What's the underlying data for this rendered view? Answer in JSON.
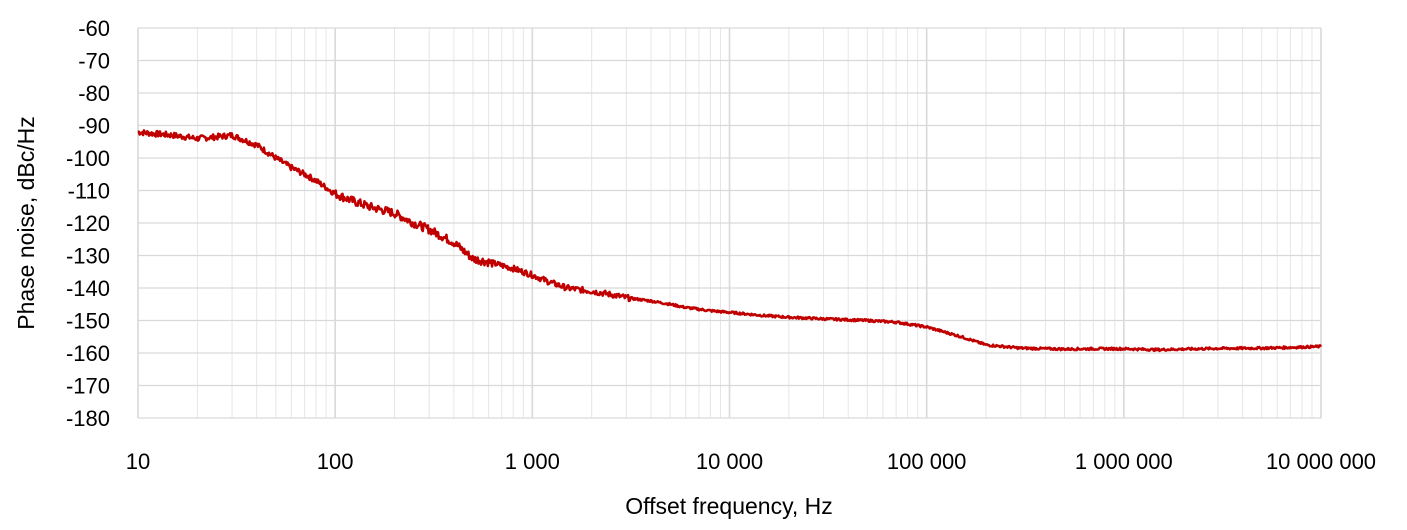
{
  "chart_data": {
    "type": "line",
    "xlabel": "Offset frequency, Hz",
    "ylabel": "Phase noise, dBc/Hz",
    "x_scale": "log",
    "xlim": [
      10,
      10000000
    ],
    "ylim": [
      -180,
      -60
    ],
    "x_ticks": [
      10,
      100,
      1000,
      10000,
      100000,
      1000000,
      10000000
    ],
    "x_tick_labels": [
      "10",
      "100",
      "1 000",
      "10 000",
      "100 000",
      "1 000 000",
      "10 000 000"
    ],
    "y_ticks": [
      -60,
      -70,
      -80,
      -90,
      -100,
      -110,
      -120,
      -130,
      -140,
      -150,
      -160,
      -170,
      -180
    ],
    "y_tick_labels": [
      "-60",
      "-70",
      "-80",
      "-90",
      "-100",
      "-110",
      "-120",
      "-130",
      "-140",
      "-150",
      "-160",
      "-170",
      "-180"
    ],
    "grid": true,
    "legend": "none",
    "series": [
      {
        "color": "#c00000",
        "x": [
          10,
          12,
          15,
          20,
          25,
          30,
          40,
          50,
          60,
          70,
          80,
          100,
          120,
          150,
          200,
          250,
          300,
          400,
          500,
          600,
          800,
          1000,
          1200,
          1500,
          2000,
          2500,
          3000,
          4000,
          5000,
          6000,
          8000,
          10000,
          15000,
          20000,
          30000,
          50000,
          70000,
          100000,
          150000,
          200000,
          300000,
          500000,
          700000,
          1000000,
          1500000,
          2000000,
          3000000,
          5000000,
          7000000,
          10000000
        ],
        "y": [
          -92,
          -92.5,
          -93,
          -94,
          -93.5,
          -93,
          -96,
          -100,
          -103,
          -105,
          -107,
          -111,
          -113,
          -115,
          -117,
          -120,
          -122,
          -126,
          -131,
          -132,
          -134,
          -136,
          -138,
          -140,
          -141,
          -142,
          -143,
          -144,
          -145,
          -146,
          -147,
          -147.5,
          -148.5,
          -149,
          -149.5,
          -150,
          -150.5,
          -152,
          -155,
          -157.5,
          -158.5,
          -158.8,
          -158.7,
          -158.7,
          -159,
          -158.8,
          -158.6,
          -158.5,
          -158.3,
          -158
        ]
      }
    ]
  }
}
